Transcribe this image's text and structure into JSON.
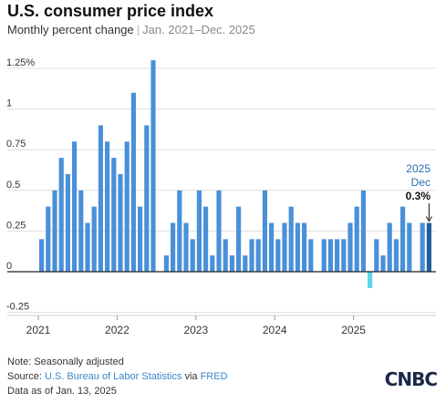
{
  "header": {
    "title": "U.S. consumer price index",
    "subtitle_main": "Monthly percent change",
    "subtitle_range": "Jan. 2021–Dec. 2025"
  },
  "annotation": {
    "year": "2025",
    "month": "Dec",
    "value": "0.3%"
  },
  "footer": {
    "note": "Note: Seasonally adjusted",
    "source_prefix": "Source: ",
    "source_org": "U.S. Bureau of Labor Statistics",
    "source_via": " via ",
    "source_fred": "FRED",
    "data_as_of": "Data as of Jan. 13, 2025",
    "logo": "CNBC"
  },
  "colors": {
    "positive": "#4a90d9",
    "negative": "#5fd3ee",
    "highlight": "#1f5f99",
    "grid": "#dddddd",
    "zero": "#222222"
  },
  "chart_data": {
    "type": "bar",
    "title": "U.S. consumer price index",
    "subtitle": "Monthly percent change | Jan. 2021–Dec. 2025",
    "x_start": "2021-01",
    "x_ticks": [
      "2021",
      "2022",
      "2023",
      "2024",
      "2025"
    ],
    "y_ticks": [
      {
        "v": 1.25,
        "label": "1.25%"
      },
      {
        "v": 1,
        "label": "1"
      },
      {
        "v": 0.75,
        "label": "0.75"
      },
      {
        "v": 0.5,
        "label": "0.5"
      },
      {
        "v": 0.25,
        "label": "0.25"
      },
      {
        "v": 0,
        "label": "0"
      },
      {
        "v": -0.25,
        "label": "-0.25"
      }
    ],
    "ylim": [
      -0.25,
      1.25
    ],
    "grid": true,
    "values": [
      0.2,
      0.4,
      0.5,
      0.7,
      0.6,
      0.8,
      0.5,
      0.3,
      0.4,
      0.9,
      0.8,
      0.7,
      0.6,
      0.8,
      1.1,
      0.4,
      0.9,
      1.3,
      null,
      0.1,
      0.3,
      0.5,
      0.3,
      0.2,
      0.5,
      0.4,
      0.1,
      0.5,
      0.2,
      0.1,
      0.4,
      0.1,
      0.2,
      0.2,
      0.5,
      0.3,
      0.2,
      0.3,
      0.4,
      0.3,
      0.3,
      0.2,
      0.0,
      0.2,
      0.2,
      0.2,
      0.2,
      0.3,
      0.4,
      0.5,
      -0.1,
      0.2,
      0.1,
      0.3,
      0.2,
      0.4,
      0.3,
      null,
      0.3,
      0.3
    ],
    "highlight_index": 59
  }
}
